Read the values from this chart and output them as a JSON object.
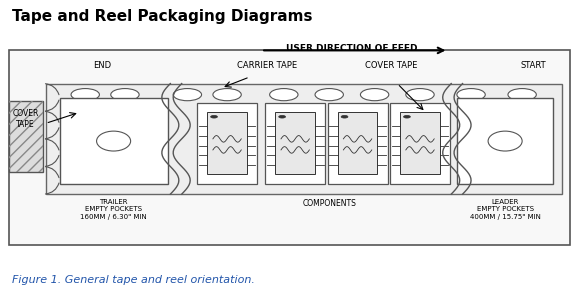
{
  "title": "Tape and Reel Packaging Diagrams",
  "caption": "Figure 1. General tape and reel orientation.",
  "bg_color": "#ffffff",
  "border_color": "#000000",
  "diagram_bg": "#ffffff",
  "text_color": "#000000",
  "arrow_label": "USER DIRECTION OF FEED",
  "label_end": "END",
  "label_start": "START",
  "label_carrier": "CARRIER TAPE",
  "label_cover": "COVER TAPE",
  "label_cover_tape_side": "COVER\nTAPE",
  "label_trailer": "TRAILER\nEMPTY POCKETS\n160MM / 6.30\" MIN",
  "label_components": "COMPONENTS",
  "label_leader": "LEADER\nEMPTY POCKETS\n400MM / 15.75\" MIN"
}
